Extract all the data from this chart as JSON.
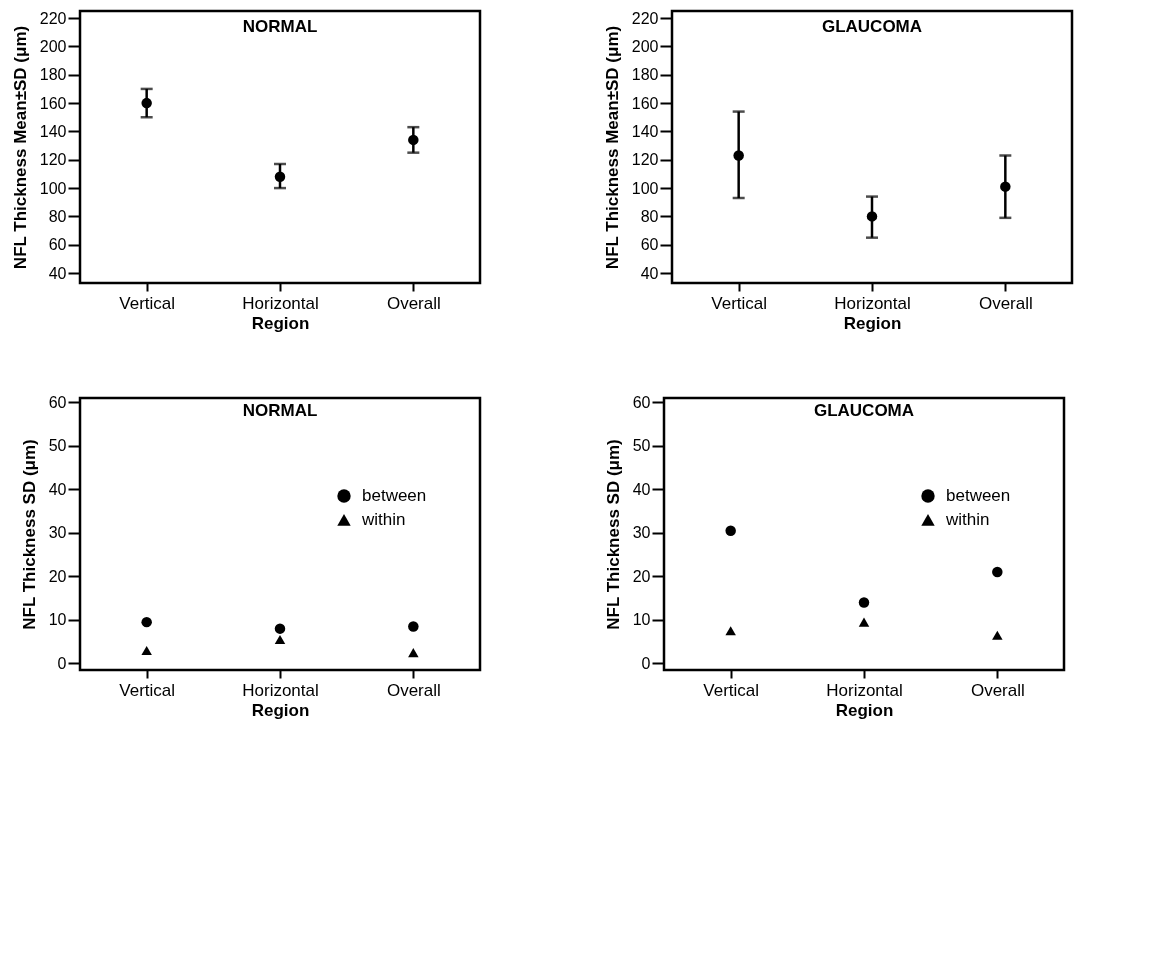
{
  "chart_data": [
    {
      "type": "scatter",
      "title": "NORMAL",
      "xlabel": "Region",
      "ylabel": "NFL Thickness Mean±SD (μm)",
      "categories": [
        "Vertical",
        "Horizontal",
        "Overall"
      ],
      "marker": "circle",
      "ylim": [
        33,
        225
      ],
      "yticks": [
        40,
        60,
        80,
        100,
        120,
        140,
        160,
        180,
        200,
        220
      ],
      "grid": false,
      "series": [
        {
          "color": "#000000",
          "values": [
            160,
            108,
            134
          ],
          "errors": [
            [
              150,
              170
            ],
            [
              100,
              117
            ],
            [
              125,
              143
            ]
          ]
        }
      ]
    },
    {
      "type": "scatter",
      "title": "GLAUCOMA",
      "xlabel": "Region",
      "ylabel": "NFL Thickness Mean±SD (μm)",
      "categories": [
        "Vertical",
        "Horizontal",
        "Overall"
      ],
      "marker": "circle",
      "ylim": [
        33,
        225
      ],
      "yticks": [
        40,
        60,
        80,
        100,
        120,
        140,
        160,
        180,
        200,
        220
      ],
      "grid": false,
      "series": [
        {
          "color": "#000000",
          "values": [
            123,
            80,
            101
          ],
          "errors": [
            [
              93,
              154
            ],
            [
              65,
              94
            ],
            [
              79,
              123
            ]
          ]
        }
      ]
    },
    {
      "type": "scatter",
      "title": "NORMAL",
      "xlabel": "Region",
      "ylabel": "NFL Thickness SD (μm)",
      "categories": [
        "Vertical",
        "Horizontal",
        "Overall"
      ],
      "ylim": [
        -1.5,
        61
      ],
      "yticks": [
        0,
        10,
        20,
        30,
        40,
        50,
        60
      ],
      "grid": false,
      "legend": "top right",
      "series": [
        {
          "name": "between",
          "color": "#000000",
          "marker": "circle",
          "values": [
            9.5,
            8,
            8.5
          ]
        },
        {
          "name": "within",
          "color": "#000000",
          "marker": "triangle",
          "values": [
            3,
            5.5,
            2.5
          ]
        }
      ]
    },
    {
      "type": "scatter",
      "title": "GLAUCOMA",
      "xlabel": "Region",
      "ylabel": "NFL Thickness SD (μm)",
      "categories": [
        "Vertical",
        "Horizontal",
        "Overall"
      ],
      "ylim": [
        -1.5,
        61
      ],
      "yticks": [
        0,
        10,
        20,
        30,
        40,
        50,
        60
      ],
      "grid": false,
      "legend": "top right",
      "series": [
        {
          "name": "between",
          "color": "#000000",
          "marker": "circle",
          "values": [
            30.5,
            14,
            21
          ]
        },
        {
          "name": "within",
          "color": "#000000",
          "marker": "triangle",
          "values": [
            7.5,
            9.5,
            6.5
          ]
        }
      ]
    }
  ]
}
